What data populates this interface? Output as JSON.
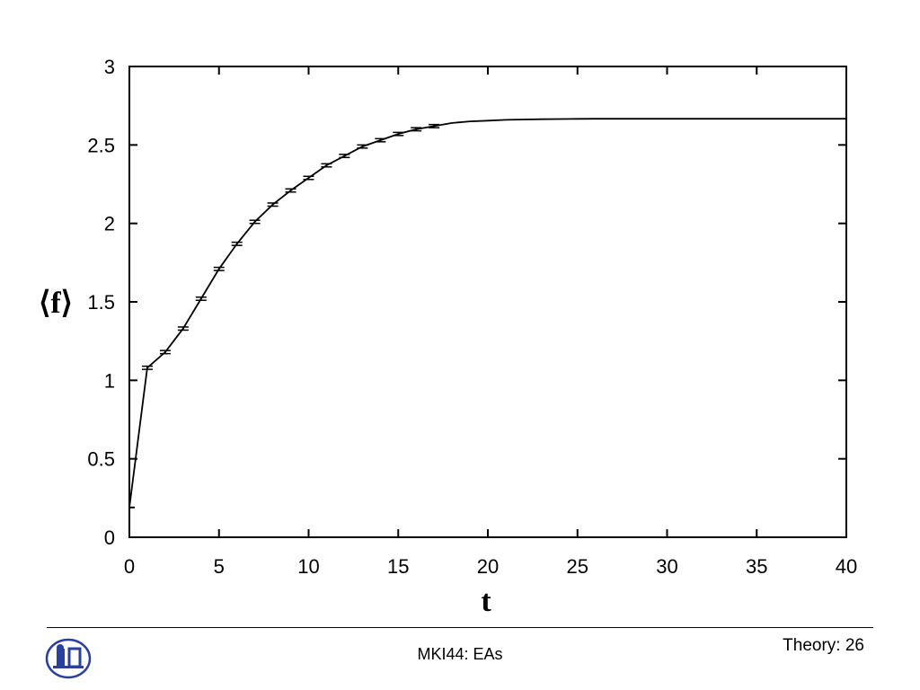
{
  "chart_data": {
    "type": "line",
    "xlabel": "t",
    "ylabel": "⟨f⟩",
    "xlim": [
      0,
      40
    ],
    "ylim": [
      0,
      3
    ],
    "xticks": [
      "0",
      "5",
      "10",
      "15",
      "20",
      "25",
      "30",
      "35",
      "40"
    ],
    "yticks": [
      "0",
      "0.5",
      "1",
      "1.5",
      "2",
      "2.5",
      "3"
    ],
    "grid": false,
    "x": [
      0,
      1,
      2,
      3,
      4,
      5,
      6,
      7,
      8,
      9,
      10,
      11,
      12,
      13,
      14,
      15,
      16,
      17,
      18,
      19,
      20,
      21,
      22,
      23,
      24,
      25,
      26,
      27,
      28,
      29,
      30,
      31,
      32,
      33,
      34,
      35,
      36,
      37,
      38,
      39,
      40
    ],
    "y": [
      0.19,
      1.08,
      1.18,
      1.33,
      1.52,
      1.71,
      1.87,
      2.01,
      2.12,
      2.21,
      2.29,
      2.37,
      2.43,
      2.49,
      2.53,
      2.57,
      2.6,
      2.62,
      2.64,
      2.65,
      2.655,
      2.66,
      2.662,
      2.664,
      2.665,
      2.666,
      2.667,
      2.667,
      2.667,
      2.667,
      2.667,
      2.667,
      2.667,
      2.667,
      2.667,
      2.667,
      2.667,
      2.667,
      2.667,
      2.667,
      2.667
    ],
    "error_bar_x": [
      1,
      2,
      3,
      4,
      5,
      6,
      7,
      8,
      9,
      10,
      11,
      12,
      13,
      14,
      15,
      16,
      17
    ],
    "error_bar_halfwidth": 0.01
  },
  "footer": {
    "center_text": "MKI44: EAs",
    "page_label": "Theory: 26"
  },
  "colors": {
    "ink": "#000000",
    "logo_blue": "#2b3f9e"
  }
}
